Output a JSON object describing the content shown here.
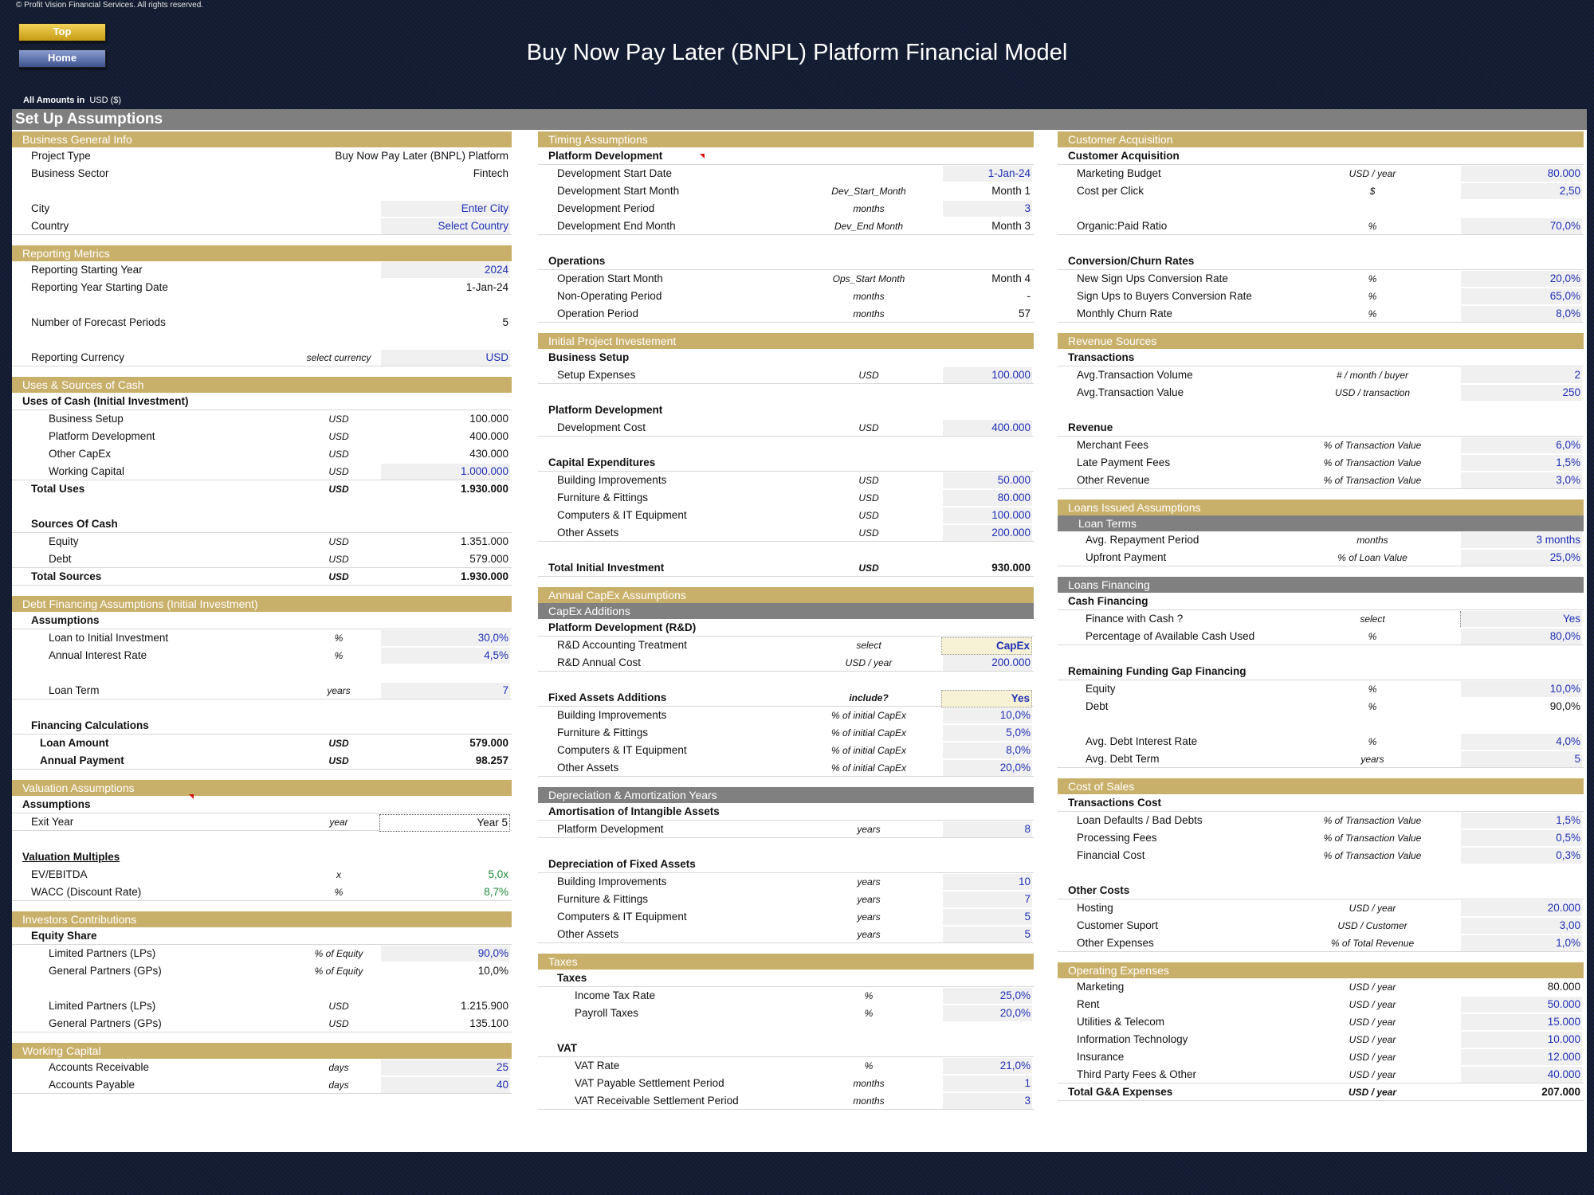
{
  "header": {
    "copyright": "© Profit Vision Financial Services. All rights reserved.",
    "top_button": "Top",
    "home_button": "Home",
    "title": "Buy Now Pay Later (BNPL) Platform Financial Model",
    "amounts_label": "All Amounts in",
    "amounts_currency": "USD ($)",
    "setup_title": "Set Up Assumptions"
  },
  "col1": {
    "business": {
      "title": "Business General Info",
      "project_type_label": "Project Type",
      "project_type": "Buy Now Pay Later (BNPL) Platform",
      "sector_label": "Business Sector",
      "sector": "Fintech",
      "city_label": "City",
      "city": "Enter City",
      "country_label": "Country",
      "country": "Select Country"
    },
    "reporting": {
      "title": "Reporting Metrics",
      "start_year_label": "Reporting Starting Year",
      "start_year": "2024",
      "start_date_label": "Reporting Year Starting Date",
      "start_date": "1-Jan-24",
      "periods_label": "Number of Forecast Periods",
      "periods": "5",
      "currency_label": "Reporting Currency",
      "currency_unit": "select currency",
      "currency": "USD"
    },
    "uses": {
      "title": "Uses & Sources of Cash",
      "uses_header": "Uses of Cash (Initial Investment)",
      "rows": [
        {
          "label": "Business Setup",
          "unit": "USD",
          "value": "100.000"
        },
        {
          "label": "Platform Development",
          "unit": "USD",
          "value": "400.000"
        },
        {
          "label": "Other CapEx",
          "unit": "USD",
          "value": "430.000"
        },
        {
          "label": "Working Capital",
          "unit": "USD",
          "value": "1.000.000"
        }
      ],
      "total_uses_label": "Total Uses",
      "total_uses_unit": "USD",
      "total_uses": "1.930.000",
      "sources_header": "Sources Of Cash",
      "equity_label": "Equity",
      "equity_unit": "USD",
      "equity": "1.351.000",
      "debt_label": "Debt",
      "debt_unit": "USD",
      "debt": "579.000",
      "total_sources_label": "Total Sources",
      "total_sources_unit": "USD",
      "total_sources": "1.930.000"
    },
    "debt": {
      "title": "Debt Financing Assumptions (Initial Investment)",
      "assumptions_header": "Assumptions",
      "loan_label": "Loan to Initial Investment",
      "loan_unit": "%",
      "loan": "30,0%",
      "rate_label": "Annual Interest Rate",
      "rate_unit": "%",
      "rate": "4,5%",
      "term_label": "Loan Term",
      "term_unit": "years",
      "term": "7",
      "calc_header": "Financing Calculations",
      "amount_label": "Loan Amount",
      "amount_unit": "USD",
      "amount": "579.000",
      "payment_label": "Annual Payment",
      "payment_unit": "USD",
      "payment": "98.257"
    },
    "valuation": {
      "title": "Valuation Assumptions",
      "assumptions_header": "Assumptions",
      "exit_label": "Exit Year",
      "exit_unit": "year",
      "exit": "Year 5",
      "multiples_header": "Valuation Multiples",
      "ev_label": "EV/EBITDA",
      "ev_unit": "x",
      "ev": "5,0x",
      "wacc_label": "WACC (Discount Rate)",
      "wacc_unit": "%",
      "wacc": "8,7%"
    },
    "investors": {
      "title": "Investors Contributions",
      "header": "Equity Share",
      "lp_pct_label": "Limited Partners (LPs)",
      "lp_pct_unit": "% of Equity",
      "lp_pct": "90,0%",
      "gp_pct_label": "General Partners (GPs)",
      "gp_pct_unit": "% of Equity",
      "gp_pct": "10,0%",
      "lp_usd_label": "Limited Partners (LPs)",
      "lp_usd_unit": "USD",
      "lp_usd": "1.215.900",
      "gp_usd_label": "General Partners (GPs)",
      "gp_usd_unit": "USD",
      "gp_usd": "135.100"
    },
    "working_capital": {
      "title": "Working Capital",
      "ar_label": "Accounts Receivable",
      "ar_unit": "days",
      "ar": "25",
      "ap_label": "Accounts Payable",
      "ap_unit": "days",
      "ap": "40"
    }
  },
  "col2": {
    "timing": {
      "title": "Timing Assumptions",
      "dev_header": "Platform Development",
      "dev_start_date_label": "Development Start Date",
      "dev_start_date": "1-Jan-24",
      "dev_start_month_label": "Development Start Month",
      "dev_start_month_unit": "Dev_Start_Month",
      "dev_start_month": "Month 1",
      "dev_period_label": "Development Period",
      "dev_period_unit": "months",
      "dev_period": "3",
      "dev_end_label": "Development End Month",
      "dev_end_unit": "Dev_End Month",
      "dev_end": "Month 3",
      "ops_header": "Operations",
      "ops_start_label": "Operation Start Month",
      "ops_start_unit": "Ops_Start Month",
      "ops_start": "Month 4",
      "non_op_label": "Non-Operating Period",
      "non_op_unit": "months",
      "non_op": "-",
      "op_period_label": "Operation Period",
      "op_period_unit": "months",
      "op_period": "57"
    },
    "initial": {
      "title": "Initial Project Investement",
      "setup_header": "Business Setup",
      "setup_label": "Setup Expenses",
      "setup_unit": "USD",
      "setup": "100.000",
      "dev_header": "Platform Development",
      "dev_label": "Development Cost",
      "dev_unit": "USD",
      "dev": "400.000",
      "capex_header": "Capital Expenditures",
      "capex_rows": [
        {
          "label": "Building Improvements",
          "unit": "USD",
          "value": "50.000"
        },
        {
          "label": "Furniture & Fittings",
          "unit": "USD",
          "value": "80.000"
        },
        {
          "label": "Computers & IT Equipment",
          "unit": "USD",
          "value": "100.000"
        },
        {
          "label": "Other Assets",
          "unit": "USD",
          "value": "200.000"
        }
      ],
      "total_label": "Total Initial Investment",
      "total_unit": "USD",
      "total": "930.000"
    },
    "capex": {
      "title": "Annual CapEx Assumptions",
      "sub": "CapEx Additions",
      "rd_header": "Platform Development (R&D)",
      "rd_treat_label": "R&D Accounting Treatment",
      "rd_treat_unit": "select",
      "rd_treat": "CapEx",
      "rd_cost_label": "R&D Annual Cost",
      "rd_cost_unit": "USD / year",
      "rd_cost": "200.000",
      "fixed_header": "Fixed Assets Additions",
      "fixed_unit": "include?",
      "fixed": "Yes",
      "fixed_rows": [
        {
          "label": "Building Improvements",
          "unit": "% of initial CapEx",
          "value": "10,0%"
        },
        {
          "label": "Furniture & Fittings",
          "unit": "% of initial CapEx",
          "value": "5,0%"
        },
        {
          "label": "Computers & IT Equipment",
          "unit": "% of initial CapEx",
          "value": "8,0%"
        },
        {
          "label": "Other Assets",
          "unit": "% of initial CapEx",
          "value": "20,0%"
        }
      ]
    },
    "depreciation": {
      "sub": "Depreciation & Amortization Years",
      "amort_header": "Amortisation of Intangible Assets",
      "platform_label": "Platform Development",
      "platform_unit": "years",
      "platform": "8",
      "dep_header": "Depreciation of Fixed Assets",
      "dep_rows": [
        {
          "label": "Building Improvements",
          "unit": "years",
          "value": "10"
        },
        {
          "label": "Furniture & Fittings",
          "unit": "years",
          "value": "7"
        },
        {
          "label": "Computers & IT Equipment",
          "unit": "years",
          "value": "5"
        },
        {
          "label": "Other Assets",
          "unit": "years",
          "value": "5"
        }
      ]
    },
    "taxes": {
      "title": "Taxes",
      "header": "Taxes",
      "income_label": "Income Tax Rate",
      "income_unit": "%",
      "income": "25,0%",
      "payroll_label": "Payroll Taxes",
      "payroll_unit": "%",
      "payroll": "20,0%",
      "vat_header": "VAT",
      "vat_rate_label": "VAT Rate",
      "vat_rate_unit": "%",
      "vat_rate": "21,0%",
      "vat_pay_label": "VAT Payable Settlement Period",
      "vat_pay_unit": "months",
      "vat_pay": "1",
      "vat_rec_label": "VAT Receivable Settlement Period",
      "vat_rec_unit": "months",
      "vat_rec": "3"
    }
  },
  "col3": {
    "acq": {
      "title": "Customer Acquisition",
      "header": "Customer Acquisition",
      "budget_label": "Marketing Budget",
      "budget_unit": "USD / year",
      "budget": "80.000",
      "cpc_label": "Cost per Click",
      "cpc_unit": "$",
      "cpc": "2,50",
      "organic_label": "Organic:Paid Ratio",
      "organic_unit": "%",
      "organic": "70,0%",
      "conv_header": "Conversion/Churn Rates",
      "signup_label": "New Sign Ups Conversion Rate",
      "signup_unit": "%",
      "signup": "20,0%",
      "buyers_label": "Sign Ups to Buyers Conversion Rate",
      "buyers_unit": "%",
      "buyers": "65,0%",
      "churn_label": "Monthly Churn Rate",
      "churn_unit": "%",
      "churn": "8,0%"
    },
    "revenue": {
      "title": "Revenue Sources",
      "trans_header": "Transactions",
      "volume_label": "Avg.Transaction Volume",
      "volume_unit": "# / month / buyer",
      "volume": "2",
      "value_label": "Avg.Transaction Value",
      "value_unit": "USD / transaction",
      "value": "250",
      "rev_header": "Revenue",
      "merchant_label": "Merchant Fees",
      "merchant_unit": "% of Transaction Value",
      "merchant": "6,0%",
      "late_label": "Late Payment Fees",
      "late_unit": "% of Transaction Value",
      "late": "1,5%",
      "other_label": "Other Revenue",
      "other_unit": "% of Transaction Value",
      "other": "3,0%"
    },
    "loans": {
      "title": "Loans Issued Assumptions",
      "terms_sub": "Loan Terms",
      "repay_label": "Avg. Repayment Period",
      "repay_unit": "months",
      "repay": "3 months",
      "upfront_label": "Upfront Payment",
      "upfront_unit": "% of Loan Value",
      "upfront": "25,0%",
      "fin_sub": "Loans Financing",
      "cash_header": "Cash Financing",
      "finance_cash_label": "Finance with Cash ?",
      "finance_cash_unit": "select",
      "finance_cash": "Yes",
      "pct_cash_label": "Percentage of Available Cash Used",
      "pct_cash_unit": "%",
      "pct_cash": "80,0%",
      "gap_header": "Remaining Funding Gap Financing",
      "equity_label": "Equity",
      "equity_unit": "%",
      "equity": "10,0%",
      "debt_label": "Debt",
      "debt_unit": "%",
      "debt": "90,0%",
      "rate_label": "Avg. Debt Interest Rate",
      "rate_unit": "%",
      "rate": "4,0%",
      "term_label": "Avg. Debt Term",
      "term_unit": "years",
      "term": "5"
    },
    "cos": {
      "title": "Cost of Sales",
      "trans_header": "Transactions Cost",
      "defaults_label": "Loan Defaults / Bad Debts",
      "defaults_unit": "% of Transaction Value",
      "defaults": "1,5%",
      "processing_label": "Processing Fees",
      "processing_unit": "% of Transaction Value",
      "processing": "0,5%",
      "financial_label": "Financial Cost",
      "financial_unit": "% of Transaction Value",
      "financial": "0,3%",
      "other_header": "Other Costs",
      "hosting_label": "Hosting",
      "hosting_unit": "USD / year",
      "hosting": "20.000",
      "support_label": "Customer Suport",
      "support_unit": "USD / Customer",
      "support": "3,00",
      "other_label": "Other Expenses",
      "other_unit": "% of Total Revenue",
      "other": "1,0%"
    },
    "opex": {
      "title": "Operating Expenses",
      "rows": [
        {
          "label": "Marketing",
          "unit": "USD / year",
          "value": "80.000"
        },
        {
          "label": "Rent",
          "unit": "USD / year",
          "value": "50.000"
        },
        {
          "label": "Utilities & Telecom",
          "unit": "USD / year",
          "value": "15.000"
        },
        {
          "label": "Information Technology",
          "unit": "USD / year",
          "value": "10.000"
        },
        {
          "label": "Insurance",
          "unit": "USD / year",
          "value": "12.000"
        },
        {
          "label": "Third Party Fees & Other",
          "unit": "USD / year",
          "value": "40.000"
        }
      ],
      "total_label": "Total G&A Expenses",
      "total_unit": "USD / year",
      "total": "207.000"
    }
  }
}
